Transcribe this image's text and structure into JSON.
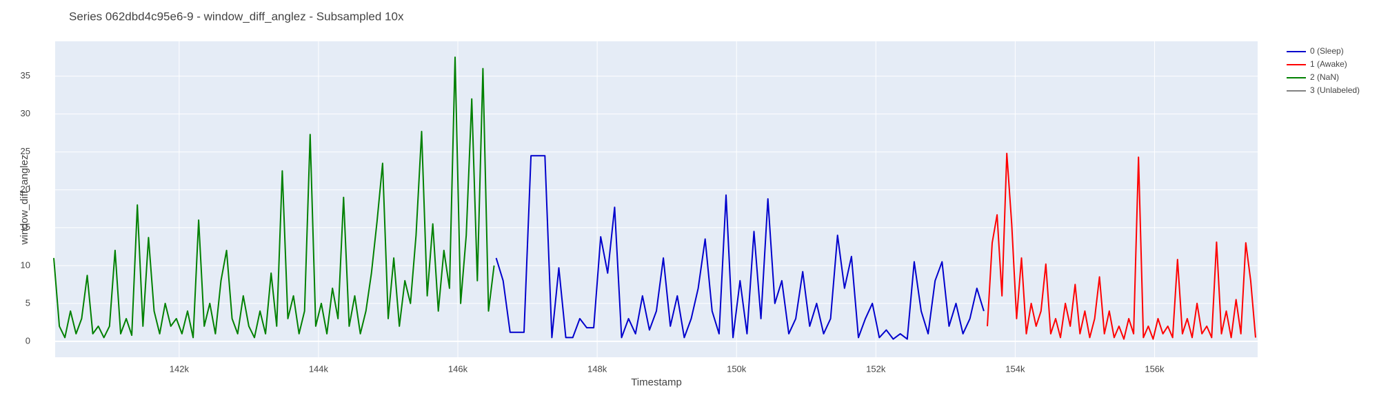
{
  "chart_data": {
    "type": "line",
    "title": "Series 062dbd4c95e6-9 - window_diff_anglez - Subsampled 10x",
    "x_label": "Timestamp",
    "y_label": "window_diff_anglez",
    "xlim": [
      140220,
      157480
    ],
    "ylim": [
      -2.1,
      39.6
    ],
    "xticks": [
      {
        "value": 142000,
        "label": "142k"
      },
      {
        "value": 144000,
        "label": "144k"
      },
      {
        "value": 146000,
        "label": "146k"
      },
      {
        "value": 148000,
        "label": "148k"
      },
      {
        "value": 150000,
        "label": "150k"
      },
      {
        "value": 152000,
        "label": "152k"
      },
      {
        "value": 154000,
        "label": "154k"
      },
      {
        "value": 156000,
        "label": "156k"
      }
    ],
    "yticks": [
      0,
      5,
      10,
      15,
      20,
      25,
      30,
      35
    ],
    "grid": true,
    "legend_position": "right",
    "series": [
      {
        "name": "0 (Sleep)",
        "color": "#0000cc",
        "x": [
          146550,
          146650,
          146750,
          146850,
          146950,
          147050,
          147150,
          147250,
          147350,
          147450,
          147550,
          147650,
          147750,
          147850,
          147950,
          148050,
          148150,
          148250,
          148350,
          148450,
          148550,
          148650,
          148750,
          148850,
          148950,
          149050,
          149150,
          149250,
          149350,
          149450,
          149550,
          149650,
          149750,
          149850,
          149950,
          150050,
          150150,
          150250,
          150350,
          150450,
          150550,
          150650,
          150750,
          150850,
          150950,
          151050,
          151150,
          151250,
          151350,
          151450,
          151550,
          151650,
          151750,
          151850,
          151950,
          152050,
          152150,
          152250,
          152350,
          152450,
          152550,
          152650,
          152750,
          152850,
          152950,
          153050,
          153150,
          153250,
          153350,
          153450,
          153550
        ],
        "values": [
          11,
          8,
          1.2,
          1.2,
          1.2,
          24.5,
          24.5,
          24.5,
          0.5,
          9.7,
          0.5,
          0.5,
          3,
          1.8,
          1.8,
          13.8,
          9,
          17.7,
          0.5,
          3,
          1,
          6,
          1.5,
          4,
          11,
          2,
          6,
          0.5,
          3,
          7,
          13.5,
          4,
          1,
          19.3,
          0.5,
          8,
          1,
          14.5,
          3,
          18.8,
          5,
          8,
          1,
          3,
          9.2,
          2,
          5,
          1,
          3,
          14,
          7,
          11.2,
          0.5,
          3,
          5,
          0.5,
          1.5,
          0.3,
          1,
          0.3,
          10.5,
          4,
          1,
          8,
          10.5,
          2,
          5,
          1,
          3,
          7,
          4
        ]
      },
      {
        "name": "1 (Awake)",
        "color": "#ff0000",
        "x": [
          153600,
          153670,
          153740,
          153810,
          153880,
          153950,
          154020,
          154090,
          154160,
          154230,
          154300,
          154370,
          154440,
          154510,
          154580,
          154650,
          154720,
          154790,
          154860,
          154930,
          155000,
          155070,
          155140,
          155210,
          155280,
          155350,
          155420,
          155490,
          155560,
          155630,
          155700,
          155770,
          155840,
          155910,
          155980,
          156050,
          156120,
          156190,
          156260,
          156330,
          156400,
          156470,
          156540,
          156610,
          156680,
          156750,
          156820,
          156890,
          156960,
          157030,
          157100,
          157170,
          157240,
          157310,
          157380,
          157450
        ],
        "values": [
          2,
          13,
          16.7,
          6,
          24.8,
          15.5,
          3,
          11,
          1,
          5,
          2,
          4,
          10.2,
          1,
          3,
          0.5,
          5,
          2,
          7.5,
          1,
          4,
          0.5,
          3,
          8.5,
          1,
          4,
          0.5,
          2,
          0.3,
          3,
          1,
          24.3,
          0.5,
          2,
          0.3,
          3,
          1,
          2,
          0.5,
          10.8,
          1,
          3,
          0.5,
          5,
          1,
          2,
          0.5,
          13.1,
          1,
          4,
          0.5,
          5.5,
          1,
          13,
          8,
          0.5
        ]
      },
      {
        "name": "2 (NaN)",
        "color": "#008000",
        "x": [
          140200,
          140280,
          140360,
          140440,
          140520,
          140600,
          140680,
          140760,
          140840,
          140920,
          141000,
          141080,
          141160,
          141240,
          141320,
          141400,
          141480,
          141560,
          141640,
          141720,
          141800,
          141880,
          141960,
          142040,
          142120,
          142200,
          142280,
          142360,
          142440,
          142520,
          142600,
          142680,
          142760,
          142840,
          142920,
          143000,
          143080,
          143160,
          143240,
          143320,
          143400,
          143480,
          143560,
          143640,
          143720,
          143800,
          143880,
          143960,
          144040,
          144120,
          144200,
          144280,
          144360,
          144440,
          144520,
          144600,
          144680,
          144760,
          144840,
          144920,
          145000,
          145080,
          145160,
          145240,
          145320,
          145400,
          145480,
          145560,
          145640,
          145720,
          145800,
          145880,
          145960,
          146040,
          146120,
          146200,
          146280,
          146360,
          146440,
          146520
        ],
        "values": [
          11,
          2,
          0.5,
          4,
          1,
          3,
          8.7,
          1,
          2,
          0.5,
          2,
          12,
          1,
          3,
          0.8,
          18,
          2,
          13.7,
          4,
          1,
          5,
          2,
          3,
          1,
          4,
          0.5,
          16,
          2,
          5,
          1,
          8,
          12,
          3,
          1,
          6,
          2,
          0.5,
          4,
          1,
          9,
          2,
          22.5,
          3,
          6,
          1,
          4,
          27.3,
          2,
          5,
          1,
          7,
          3,
          19,
          2,
          6,
          1,
          4,
          9,
          15.8,
          23.5,
          3,
          11,
          2,
          8,
          5,
          14,
          27.7,
          6,
          15.5,
          4,
          12,
          7,
          37.5,
          5,
          14,
          32,
          8,
          36,
          4,
          10
        ]
      },
      {
        "name": "3 (Unlabeled)",
        "color": "#808080"
      }
    ]
  }
}
